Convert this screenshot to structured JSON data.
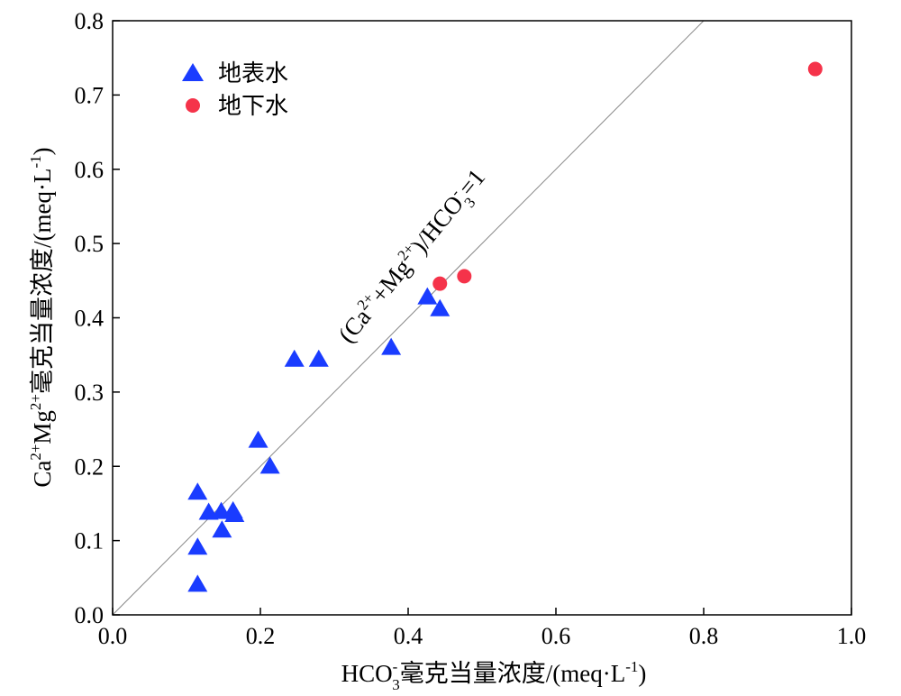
{
  "chart_data": {
    "type": "scatter",
    "xlim": [
      0,
      1.0
    ],
    "ylim": [
      0,
      0.8
    ],
    "x_ticks": [
      "0.0",
      "0.2",
      "0.4",
      "0.6",
      "0.8",
      "1.0"
    ],
    "y_ticks": [
      "0.0",
      "0.1",
      "0.2",
      "0.3",
      "0.4",
      "0.5",
      "0.6",
      "0.7",
      "0.8"
    ],
    "xlabel": {
      "prefix": "HCO",
      "sup": "-",
      "sub": "3",
      "suffix": "毫克当量浓度/(meq·L",
      "unit_sup": "-1",
      "close": ")"
    },
    "ylabel": {
      "a": "Ca",
      "a_sup": "2+",
      "b": "Mg",
      "b_sup": "2+",
      "rest": "毫克当量浓度/(meq·L",
      "unit_sup": "-1",
      "close": ")"
    },
    "reference_line": {
      "slope": 1,
      "label": {
        "p1": "(Ca",
        "s1": "2+",
        "p2": "+Mg",
        "s2": "2+",
        "p3": ")/HCO",
        "sup3": "-",
        "sub3": "3",
        "p4": "=1"
      }
    },
    "legend_position": "top-left",
    "series": [
      {
        "name": "地表水",
        "marker": "triangle",
        "color": "#1a3cff",
        "points": [
          {
            "x": 0.115,
            "y": 0.166
          },
          {
            "x": 0.115,
            "y": 0.092
          },
          {
            "x": 0.115,
            "y": 0.042
          },
          {
            "x": 0.13,
            "y": 0.139
          },
          {
            "x": 0.147,
            "y": 0.14
          },
          {
            "x": 0.148,
            "y": 0.115
          },
          {
            "x": 0.163,
            "y": 0.141
          },
          {
            "x": 0.165,
            "y": 0.136
          },
          {
            "x": 0.197,
            "y": 0.236
          },
          {
            "x": 0.213,
            "y": 0.201
          },
          {
            "x": 0.246,
            "y": 0.345
          },
          {
            "x": 0.279,
            "y": 0.345
          },
          {
            "x": 0.377,
            "y": 0.361
          },
          {
            "x": 0.426,
            "y": 0.429
          },
          {
            "x": 0.443,
            "y": 0.413
          }
        ]
      },
      {
        "name": "地下水",
        "marker": "circle",
        "color": "#f5334a",
        "points": [
          {
            "x": 0.443,
            "y": 0.446
          },
          {
            "x": 0.476,
            "y": 0.456
          },
          {
            "x": 0.951,
            "y": 0.735
          }
        ]
      }
    ]
  }
}
